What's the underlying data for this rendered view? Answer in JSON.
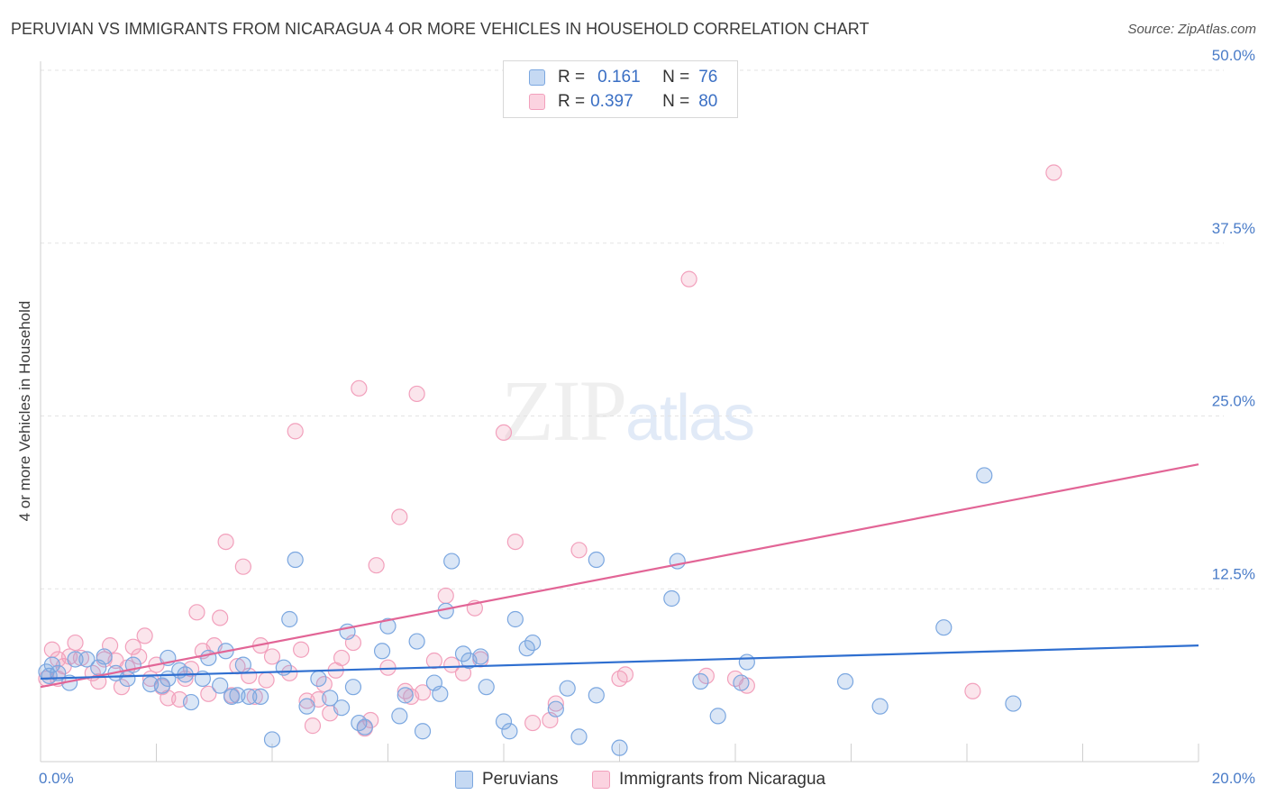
{
  "title": "PERUVIAN VS IMMIGRANTS FROM NICARAGUA 4 OR MORE VEHICLES IN HOUSEHOLD CORRELATION CHART",
  "source": "Source: ZipAtlas.com",
  "watermark": {
    "part1": "ZIP",
    "part2": "atlas"
  },
  "stats": {
    "row1": {
      "r_label": "R =",
      "r_value": "0.161",
      "n_label": "N =",
      "n_value": "76"
    },
    "row2": {
      "r_label": "R =",
      "r_value": "0.397",
      "n_label": "N =",
      "n_value": "80"
    }
  },
  "legend": {
    "series1": "Peruvians",
    "series2": "Immigrants from Nicaragua"
  },
  "chart_data": {
    "type": "scatter",
    "ylabel": "4 or more Vehicles in Household",
    "xlabel": "",
    "xlim": [
      0,
      20
    ],
    "ylim": [
      0,
      50
    ],
    "x_tick_labels": [
      {
        "value": 0,
        "label": "0.0%"
      },
      {
        "value": 20,
        "label": "20.0%"
      }
    ],
    "y_tick_labels": [
      {
        "value": 12.5,
        "label": "12.5%"
      },
      {
        "value": 25,
        "label": "25.0%"
      },
      {
        "value": 37.5,
        "label": "37.5%"
      },
      {
        "value": 50,
        "label": "50.0%"
      }
    ],
    "grid": true,
    "colors": {
      "peruvians": "#7ba7e0",
      "nicaragua": "#f2a0bc",
      "peru_line": "#2f6fd0",
      "nic_line": "#e26596"
    },
    "series": [
      {
        "name": "Peruvians",
        "trend": [
          [
            0,
            6.0
          ],
          [
            20,
            8.4
          ]
        ],
        "points": [
          [
            0.1,
            6.5
          ],
          [
            0.2,
            7.0
          ],
          [
            0.3,
            6.4
          ],
          [
            0.5,
            5.7
          ],
          [
            0.6,
            7.4
          ],
          [
            0.8,
            7.4
          ],
          [
            1.0,
            6.8
          ],
          [
            1.1,
            7.6
          ],
          [
            1.3,
            6.4
          ],
          [
            1.6,
            7.0
          ],
          [
            1.9,
            5.6
          ],
          [
            2.2,
            6.0
          ],
          [
            2.1,
            5.5
          ],
          [
            2.2,
            7.5
          ],
          [
            2.5,
            6.3
          ],
          [
            2.6,
            4.3
          ],
          [
            2.8,
            6.0
          ],
          [
            2.9,
            7.5
          ],
          [
            3.1,
            5.5
          ],
          [
            3.2,
            8.0
          ],
          [
            3.3,
            4.7
          ],
          [
            3.5,
            7.0
          ],
          [
            3.6,
            4.7
          ],
          [
            3.8,
            4.7
          ],
          [
            4.0,
            1.6
          ],
          [
            4.2,
            6.8
          ],
          [
            4.3,
            10.3
          ],
          [
            4.4,
            14.6
          ],
          [
            4.6,
            4.0
          ],
          [
            4.8,
            6.0
          ],
          [
            5.0,
            4.6
          ],
          [
            5.2,
            3.9
          ],
          [
            5.3,
            9.4
          ],
          [
            5.4,
            5.4
          ],
          [
            5.5,
            2.8
          ],
          [
            5.6,
            2.5
          ],
          [
            5.9,
            8.0
          ],
          [
            6.0,
            9.8
          ],
          [
            6.2,
            3.3
          ],
          [
            6.3,
            4.8
          ],
          [
            6.5,
            8.7
          ],
          [
            6.6,
            2.2
          ],
          [
            6.8,
            5.7
          ],
          [
            6.9,
            4.9
          ],
          [
            7.0,
            10.9
          ],
          [
            7.1,
            14.5
          ],
          [
            7.3,
            7.8
          ],
          [
            7.4,
            7.3
          ],
          [
            7.6,
            7.6
          ],
          [
            7.7,
            5.4
          ],
          [
            8.0,
            2.9
          ],
          [
            8.1,
            2.2
          ],
          [
            8.2,
            10.3
          ],
          [
            8.4,
            8.2
          ],
          [
            8.5,
            8.6
          ],
          [
            8.9,
            3.8
          ],
          [
            9.1,
            5.3
          ],
          [
            9.3,
            1.8
          ],
          [
            9.6,
            4.8
          ],
          [
            9.6,
            14.6
          ],
          [
            10.0,
            1.0
          ],
          [
            10.9,
            11.8
          ],
          [
            11.0,
            14.5
          ],
          [
            11.4,
            5.8
          ],
          [
            11.7,
            3.3
          ],
          [
            12.1,
            5.7
          ],
          [
            12.2,
            7.2
          ],
          [
            13.9,
            5.8
          ],
          [
            14.5,
            4.0
          ],
          [
            15.6,
            9.7
          ],
          [
            16.3,
            20.7
          ],
          [
            16.8,
            4.2
          ],
          [
            0.15,
            6.2
          ],
          [
            1.5,
            6.0
          ],
          [
            2.4,
            6.6
          ],
          [
            3.4,
            4.8
          ]
        ]
      },
      {
        "name": "Immigrants from Nicaragua",
        "trend": [
          [
            0,
            5.4
          ],
          [
            20,
            21.5
          ]
        ],
        "points": [
          [
            0.1,
            6.0
          ],
          [
            0.2,
            8.1
          ],
          [
            0.3,
            7.4
          ],
          [
            0.4,
            6.9
          ],
          [
            0.5,
            7.6
          ],
          [
            0.6,
            8.6
          ],
          [
            0.7,
            7.5
          ],
          [
            0.9,
            6.4
          ],
          [
            1.0,
            5.8
          ],
          [
            1.1,
            7.4
          ],
          [
            1.2,
            8.4
          ],
          [
            1.4,
            5.4
          ],
          [
            1.5,
            6.8
          ],
          [
            1.6,
            8.3
          ],
          [
            1.7,
            7.6
          ],
          [
            1.8,
            9.1
          ],
          [
            1.9,
            6.0
          ],
          [
            2.0,
            7.0
          ],
          [
            2.1,
            5.4
          ],
          [
            2.2,
            4.6
          ],
          [
            2.4,
            4.5
          ],
          [
            2.5,
            6.0
          ],
          [
            2.6,
            6.7
          ],
          [
            2.7,
            10.8
          ],
          [
            2.8,
            8.0
          ],
          [
            3.0,
            8.4
          ],
          [
            3.1,
            10.4
          ],
          [
            3.2,
            15.9
          ],
          [
            3.3,
            4.8
          ],
          [
            3.4,
            6.9
          ],
          [
            3.5,
            14.1
          ],
          [
            3.6,
            6.2
          ],
          [
            3.8,
            8.4
          ],
          [
            3.9,
            5.9
          ],
          [
            4.0,
            7.6
          ],
          [
            4.3,
            6.4
          ],
          [
            4.4,
            23.9
          ],
          [
            4.5,
            8.1
          ],
          [
            4.6,
            4.4
          ],
          [
            4.7,
            2.6
          ],
          [
            4.8,
            4.5
          ],
          [
            5.0,
            3.5
          ],
          [
            5.1,
            6.6
          ],
          [
            5.2,
            7.5
          ],
          [
            5.4,
            8.6
          ],
          [
            5.5,
            27.0
          ],
          [
            5.6,
            2.4
          ],
          [
            5.7,
            3.0
          ],
          [
            5.8,
            14.2
          ],
          [
            6.0,
            6.8
          ],
          [
            6.2,
            17.7
          ],
          [
            6.3,
            5.1
          ],
          [
            6.4,
            4.7
          ],
          [
            6.5,
            26.6
          ],
          [
            6.6,
            5.0
          ],
          [
            6.8,
            7.3
          ],
          [
            7.0,
            12.0
          ],
          [
            7.1,
            7.0
          ],
          [
            7.3,
            6.4
          ],
          [
            7.5,
            11.1
          ],
          [
            7.6,
            7.4
          ],
          [
            8.0,
            23.8
          ],
          [
            8.2,
            15.9
          ],
          [
            8.5,
            2.8
          ],
          [
            8.8,
            3.0
          ],
          [
            8.9,
            4.2
          ],
          [
            9.3,
            15.3
          ],
          [
            10.0,
            6.0
          ],
          [
            10.1,
            6.3
          ],
          [
            11.2,
            34.9
          ],
          [
            11.5,
            6.2
          ],
          [
            12.0,
            6.0
          ],
          [
            12.2,
            5.5
          ],
          [
            16.1,
            5.1
          ],
          [
            17.5,
            42.6
          ],
          [
            0.3,
            6.0
          ],
          [
            1.3,
            7.3
          ],
          [
            2.9,
            4.9
          ],
          [
            3.7,
            4.7
          ],
          [
            4.9,
            5.6
          ]
        ]
      }
    ]
  }
}
